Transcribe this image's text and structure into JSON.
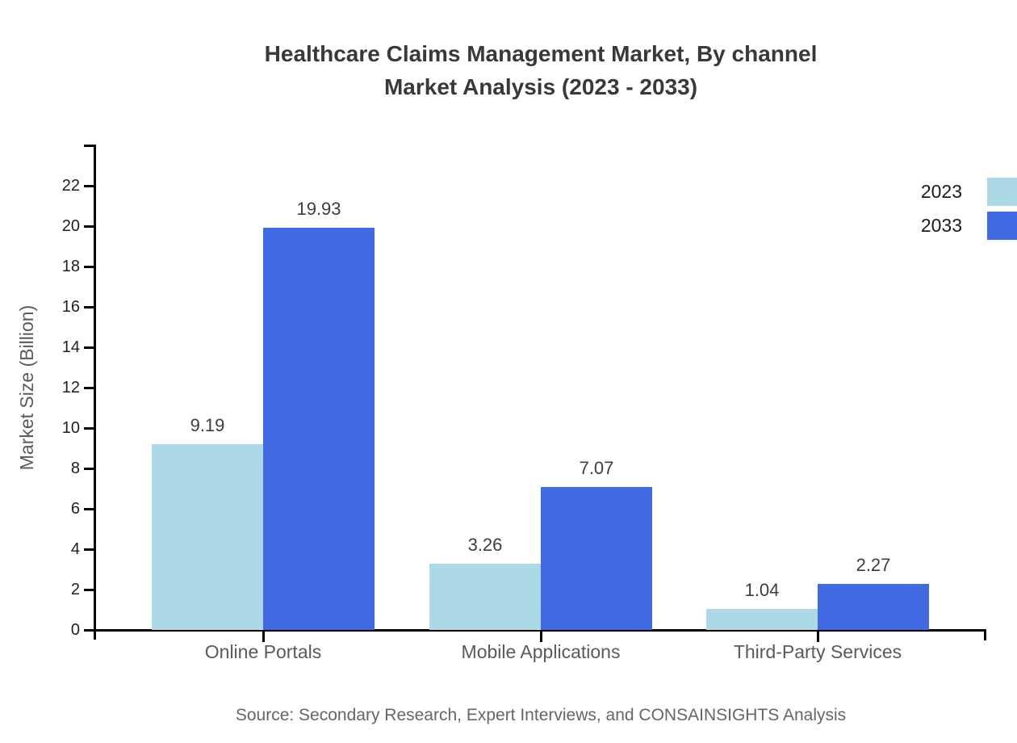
{
  "title": {
    "line1": "Healthcare Claims Management Market, By channel",
    "line2": "Market Analysis (2023 - 2033)"
  },
  "source": "Source: Secondary Research, Expert Interviews, and CONSAINSIGHTS Analysis",
  "legend": [
    {
      "label": "2023",
      "color": "#ADD8E6"
    },
    {
      "label": "2033",
      "color": "#4169E1"
    }
  ],
  "colors": {
    "series_2023": "#ADD8E6",
    "series_2033": "#4169E1",
    "axis": "#000000",
    "title_text": "#393939",
    "category_text": "#5a5a5a",
    "value_text": "#3d3d3d",
    "source_text": "#666666"
  },
  "chart_data": {
    "type": "bar",
    "title": "Healthcare Claims Management Market, By channel Market Analysis (2023 - 2033)",
    "categories": [
      "Online Portals",
      "Mobile Applications",
      "Third-Party Services"
    ],
    "series": [
      {
        "name": "2023",
        "color": "#ADD8E6",
        "values": [
          9.19,
          3.26,
          1.04
        ]
      },
      {
        "name": "2033",
        "color": "#4169E1",
        "values": [
          19.93,
          7.07,
          2.27
        ]
      }
    ],
    "value_labels": [
      "9.19",
      "19.93",
      "3.26",
      "7.07",
      "1.04",
      "2.27"
    ],
    "xlabel": "",
    "ylabel": "Market Size (Billion)",
    "ylim": [
      0,
      24
    ],
    "yticks": [
      0,
      2,
      4,
      6,
      8,
      10,
      12,
      14,
      16,
      18,
      20,
      22
    ],
    "grid": false,
    "legend_position": "top-right"
  }
}
